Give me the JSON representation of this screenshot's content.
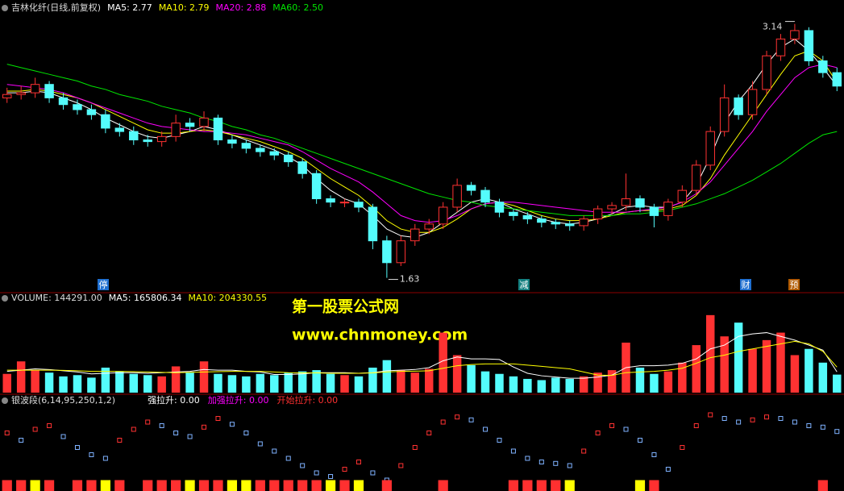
{
  "watermark": [
    "第一股票公式网",
    "www.chnmoney.com"
  ],
  "chart_data": [
    {
      "type": "candlestick",
      "title": "吉林化纤(日线,前复权)",
      "ylim": [
        1.58,
        3.21
      ],
      "up_color": "#ff3232",
      "down_color": "#54fcfc",
      "open": [
        2.7,
        2.72,
        2.73,
        2.78,
        2.7,
        2.66,
        2.63,
        2.6,
        2.52,
        2.5,
        2.45,
        2.44,
        2.47,
        2.55,
        2.53,
        2.58,
        2.45,
        2.43,
        2.4,
        2.38,
        2.36,
        2.32,
        2.25,
        2.1,
        2.08,
        2.08,
        2.05,
        1.85,
        1.72,
        1.85,
        1.92,
        1.95,
        2.05,
        2.18,
        2.15,
        2.08,
        2.02,
        2.0,
        1.98,
        1.96,
        1.95,
        1.94,
        1.98,
        2.04,
        2.06,
        2.1,
        2.05,
        2.0,
        2.08,
        2.15,
        2.3,
        2.5,
        2.7,
        2.6,
        2.75,
        2.95,
        3.05,
        3.1,
        2.92,
        2.85
      ],
      "high": [
        2.76,
        2.77,
        2.82,
        2.8,
        2.73,
        2.69,
        2.66,
        2.63,
        2.55,
        2.53,
        2.48,
        2.5,
        2.6,
        2.58,
        2.62,
        2.6,
        2.48,
        2.45,
        2.42,
        2.4,
        2.38,
        2.34,
        2.27,
        2.12,
        2.1,
        2.1,
        2.07,
        1.88,
        1.88,
        1.95,
        1.98,
        2.08,
        2.22,
        2.2,
        2.17,
        2.1,
        2.04,
        2.02,
        2.0,
        1.98,
        1.97,
        2.0,
        2.06,
        2.08,
        2.25,
        2.12,
        2.07,
        2.1,
        2.18,
        2.33,
        2.53,
        2.78,
        2.72,
        2.8,
        2.98,
        3.08,
        3.14,
        3.12,
        2.95,
        2.88
      ],
      "low": [
        2.67,
        2.69,
        2.7,
        2.67,
        2.63,
        2.6,
        2.57,
        2.49,
        2.47,
        2.42,
        2.41,
        2.41,
        2.44,
        2.5,
        2.5,
        2.42,
        2.4,
        2.37,
        2.35,
        2.33,
        2.29,
        2.22,
        2.07,
        2.05,
        2.05,
        2.02,
        1.8,
        1.63,
        1.7,
        1.82,
        1.89,
        1.92,
        2.02,
        2.12,
        2.05,
        1.99,
        1.97,
        1.95,
        1.93,
        1.92,
        1.91,
        1.91,
        1.95,
        2.01,
        2.03,
        2.02,
        1.93,
        1.97,
        2.05,
        2.12,
        2.27,
        2.47,
        2.57,
        2.57,
        2.72,
        2.92,
        3.02,
        2.89,
        2.82,
        2.74
      ],
      "close": [
        2.72,
        2.73,
        2.78,
        2.7,
        2.66,
        2.63,
        2.6,
        2.52,
        2.5,
        2.45,
        2.44,
        2.47,
        2.55,
        2.53,
        2.58,
        2.45,
        2.43,
        2.4,
        2.38,
        2.36,
        2.32,
        2.25,
        2.1,
        2.08,
        2.08,
        2.05,
        1.85,
        1.72,
        1.85,
        1.92,
        1.95,
        2.05,
        2.18,
        2.15,
        2.08,
        2.02,
        2.0,
        1.98,
        1.96,
        1.95,
        1.94,
        1.98,
        2.04,
        2.06,
        2.1,
        2.05,
        2.0,
        2.08,
        2.15,
        2.3,
        2.5,
        2.7,
        2.6,
        2.75,
        2.95,
        3.05,
        3.1,
        2.92,
        2.85,
        2.77
      ],
      "series": [
        {
          "name": "MA5: 2.77",
          "color": "#ffffff",
          "values": [
            2.73,
            2.73,
            2.74,
            2.73,
            2.7,
            2.67,
            2.63,
            2.58,
            2.54,
            2.5,
            2.47,
            2.46,
            2.48,
            2.5,
            2.53,
            2.51,
            2.48,
            2.45,
            2.42,
            2.39,
            2.35,
            2.3,
            2.22,
            2.15,
            2.1,
            2.07,
            2.0,
            1.92,
            1.88,
            1.87,
            1.9,
            1.96,
            2.02,
            2.08,
            2.1,
            2.08,
            2.04,
            2.01,
            1.98,
            1.96,
            1.95,
            1.96,
            1.98,
            2.01,
            2.05,
            2.06,
            2.05,
            2.05,
            2.08,
            2.18,
            2.35,
            2.55,
            2.68,
            2.78,
            2.9,
            3.0,
            3.05,
            2.98,
            2.88,
            2.77
          ]
        },
        {
          "name": "MA10: 2.79",
          "color": "#ffff00",
          "values": [
            2.74,
            2.74,
            2.75,
            2.74,
            2.72,
            2.7,
            2.67,
            2.63,
            2.59,
            2.55,
            2.51,
            2.49,
            2.49,
            2.5,
            2.51,
            2.5,
            2.48,
            2.46,
            2.44,
            2.41,
            2.38,
            2.34,
            2.28,
            2.22,
            2.17,
            2.12,
            2.05,
            1.97,
            1.92,
            1.9,
            1.9,
            1.93,
            1.98,
            2.04,
            2.07,
            2.08,
            2.06,
            2.03,
            2.0,
            1.98,
            1.97,
            1.97,
            1.98,
            2.0,
            2.02,
            2.03,
            2.03,
            2.04,
            2.06,
            2.12,
            2.22,
            2.36,
            2.48,
            2.6,
            2.72,
            2.84,
            2.95,
            2.98,
            2.92,
            2.79
          ]
        },
        {
          "name": "MA20: 2.88",
          "color": "#ff00ff",
          "values": [
            2.78,
            2.77,
            2.76,
            2.75,
            2.73,
            2.7,
            2.67,
            2.64,
            2.61,
            2.58,
            2.55,
            2.53,
            2.52,
            2.51,
            2.5,
            2.5,
            2.49,
            2.48,
            2.46,
            2.44,
            2.42,
            2.38,
            2.33,
            2.28,
            2.24,
            2.2,
            2.14,
            2.07,
            2.0,
            1.97,
            1.96,
            1.97,
            2.0,
            2.04,
            2.07,
            2.08,
            2.08,
            2.07,
            2.06,
            2.05,
            2.04,
            2.03,
            2.02,
            2.02,
            2.02,
            2.03,
            2.04,
            2.05,
            2.08,
            2.13,
            2.2,
            2.3,
            2.4,
            2.5,
            2.62,
            2.72,
            2.82,
            2.88,
            2.9,
            2.88
          ]
        },
        {
          "name": "MA60: 2.50",
          "color": "#00e600",
          "values": [
            2.9,
            2.88,
            2.86,
            2.84,
            2.82,
            2.8,
            2.77,
            2.75,
            2.72,
            2.7,
            2.68,
            2.65,
            2.63,
            2.61,
            2.58,
            2.56,
            2.53,
            2.51,
            2.48,
            2.46,
            2.43,
            2.4,
            2.37,
            2.34,
            2.31,
            2.28,
            2.25,
            2.22,
            2.19,
            2.16,
            2.13,
            2.11,
            2.09,
            2.08,
            2.06,
            2.05,
            2.04,
            2.03,
            2.02,
            2.01,
            2.0,
            2.0,
            2.0,
            2.0,
            2.01,
            2.01,
            2.02,
            2.03,
            2.05,
            2.07,
            2.1,
            2.13,
            2.17,
            2.21,
            2.26,
            2.31,
            2.37,
            2.43,
            2.48,
            2.5
          ]
        }
      ],
      "events": [
        "停",
        "减",
        "财",
        "预"
      ]
    },
    {
      "type": "volume",
      "ylim": [
        0,
        690000
      ],
      "up_color": "#ff3232",
      "down_color": "#54fcfc",
      "series": [
        {
          "name": "VOLUME: 144291.00",
          "color": "#dddddd",
          "values": [
            150000,
            250000,
            180000,
            160000,
            130000,
            140000,
            120000,
            200000,
            170000,
            150000,
            140000,
            130000,
            210000,
            160000,
            250000,
            150000,
            140000,
            130000,
            150000,
            140000,
            160000,
            170000,
            180000,
            150000,
            140000,
            130000,
            200000,
            260000,
            180000,
            160000,
            190000,
            480000,
            300000,
            220000,
            170000,
            150000,
            130000,
            110000,
            100000,
            120000,
            110000,
            130000,
            160000,
            180000,
            400000,
            200000,
            150000,
            170000,
            240000,
            380000,
            620000,
            450000,
            560000,
            350000,
            420000,
            480000,
            300000,
            350000,
            240000,
            144291
          ]
        },
        {
          "name": "MA5: 165806.34",
          "color": "#ffffff",
          "values": [
            170000,
            180000,
            190000,
            185000,
            175000,
            165000,
            150000,
            155000,
            160000,
            160000,
            155000,
            160000,
            165000,
            170000,
            185000,
            180000,
            180000,
            170000,
            165000,
            145000,
            145000,
            150000,
            160000,
            160000,
            160000,
            155000,
            160000,
            175000,
            180000,
            185000,
            200000,
            255000,
            285000,
            270000,
            270000,
            265000,
            205000,
            155000,
            135000,
            125000,
            115000,
            115000,
            125000,
            140000,
            200000,
            215000,
            215000,
            220000,
            235000,
            270000,
            350000,
            380000,
            450000,
            470000,
            480000,
            450000,
            420000,
            380000,
            340000,
            165806.34
          ]
        },
        {
          "name": "MA10: 204330.55",
          "color": "#ffff00",
          "values": [
            180000,
            180000,
            180000,
            180000,
            178000,
            175000,
            170000,
            170000,
            170000,
            168000,
            165000,
            162000,
            160000,
            162000,
            165000,
            168000,
            170000,
            170000,
            170000,
            165000,
            160000,
            158000,
            158000,
            155000,
            155000,
            155000,
            158000,
            165000,
            170000,
            172000,
            175000,
            195000,
            215000,
            225000,
            230000,
            230000,
            230000,
            220000,
            210000,
            200000,
            190000,
            165000,
            140000,
            138000,
            160000,
            165000,
            170000,
            180000,
            195000,
            235000,
            280000,
            300000,
            330000,
            350000,
            370000,
            390000,
            410000,
            390000,
            330000,
            204330.55
          ]
        }
      ]
    },
    {
      "type": "oscillator",
      "title": "银波段(6,14,95,250,1,2)",
      "ylim": [
        0,
        100
      ],
      "up_color": "#ff3232",
      "down_color": "#7fb2ff",
      "values": [
        70,
        60,
        75,
        80,
        65,
        50,
        40,
        35,
        60,
        75,
        85,
        80,
        70,
        65,
        78,
        90,
        82,
        70,
        55,
        45,
        35,
        25,
        15,
        10,
        20,
        30,
        15,
        5,
        25,
        50,
        70,
        85,
        92,
        88,
        75,
        60,
        45,
        35,
        30,
        28,
        25,
        45,
        70,
        80,
        75,
        60,
        40,
        20,
        50,
        80,
        95,
        90,
        85,
        88,
        92,
        90,
        85,
        80,
        78,
        72
      ],
      "series": [
        {
          "name": "强拉升: 0.00",
          "color": "#ffff00",
          "values": [
            0,
            0,
            15,
            0,
            0,
            0,
            0,
            15,
            0,
            0,
            0,
            0,
            0,
            15,
            0,
            0,
            15,
            15,
            0,
            0,
            0,
            0,
            0,
            15,
            0,
            15,
            0,
            0,
            0,
            0,
            0,
            0,
            0,
            0,
            0,
            0,
            0,
            0,
            0,
            0,
            15,
            0,
            0,
            0,
            0,
            15,
            0,
            0,
            0,
            0,
            0,
            0,
            0,
            0,
            0,
            0,
            0,
            0,
            0,
            0
          ]
        },
        {
          "name": "加强拉升: 0.00",
          "color": "#ff00ff",
          "values": [
            0,
            0,
            0,
            0,
            0,
            0,
            0,
            0,
            0,
            0,
            0,
            0,
            0,
            0,
            0,
            0,
            0,
            0,
            0,
            0,
            0,
            0,
            0,
            0,
            0,
            0,
            0,
            0,
            0,
            0,
            0,
            0,
            0,
            0,
            0,
            0,
            0,
            0,
            0,
            0,
            0,
            0,
            0,
            0,
            0,
            0,
            0,
            0,
            0,
            0,
            0,
            0,
            0,
            0,
            0,
            0,
            0,
            0,
            0,
            0
          ]
        },
        {
          "name": "开始拉升: 0.00",
          "color": "#ff3030",
          "values": [
            15,
            15,
            0,
            15,
            0,
            15,
            15,
            0,
            15,
            0,
            15,
            15,
            15,
            0,
            15,
            15,
            0,
            0,
            15,
            15,
            15,
            15,
            15,
            0,
            15,
            0,
            0,
            15,
            0,
            0,
            0,
            15,
            0,
            0,
            0,
            0,
            15,
            15,
            15,
            15,
            0,
            0,
            0,
            0,
            0,
            0,
            15,
            0,
            0,
            0,
            0,
            0,
            0,
            0,
            0,
            0,
            0,
            0,
            15,
            0
          ]
        }
      ]
    }
  ]
}
